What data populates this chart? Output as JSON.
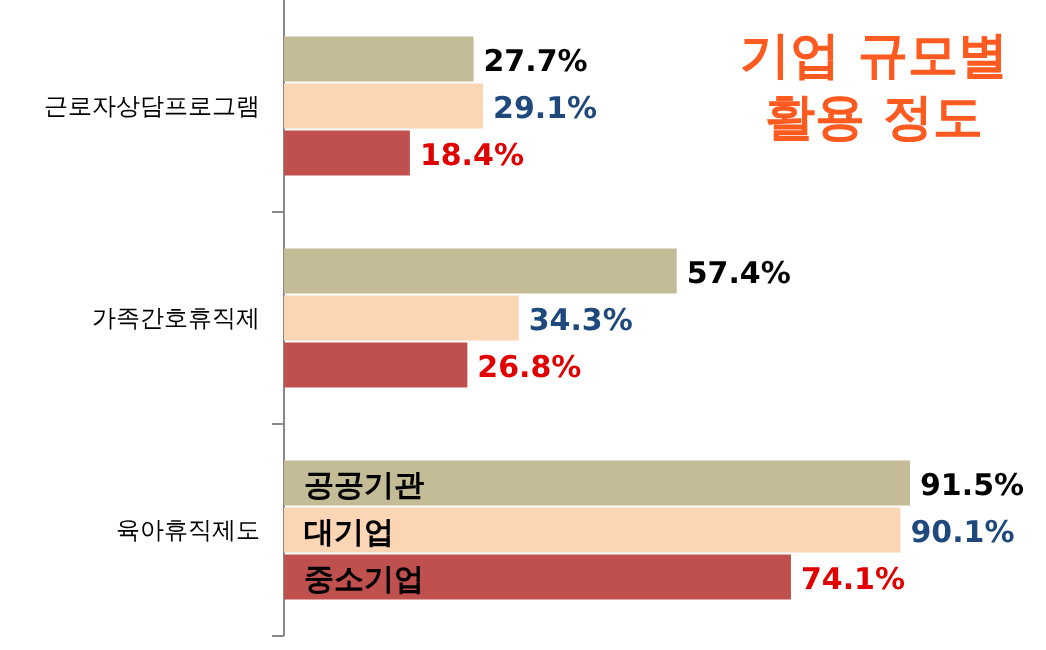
{
  "chart_data": {
    "type": "bar",
    "orientation": "horizontal",
    "title": "기업 규모별\n활용 정도",
    "categories": [
      "근로자상담프로그램",
      "가족간호휴직제",
      "육아휴직제도"
    ],
    "series": [
      {
        "name": "공공기관",
        "color": "#c4bc96",
        "values": [
          27.7,
          57.4,
          91.5
        ],
        "value_labels": [
          "27.7%",
          "57.4%",
          "91.5%"
        ]
      },
      {
        "name": "대기업",
        "color": "#fcd5b5",
        "values": [
          29.1,
          34.3,
          90.1
        ],
        "value_labels": [
          "29.1%",
          "34.3%",
          "90.1%"
        ]
      },
      {
        "name": "중소기업",
        "color": "#c0504d",
        "values": [
          18.4,
          26.8,
          74.1
        ],
        "value_labels": [
          "18.4%",
          "26.8%",
          "74.1%"
        ]
      }
    ],
    "legend": false
  }
}
